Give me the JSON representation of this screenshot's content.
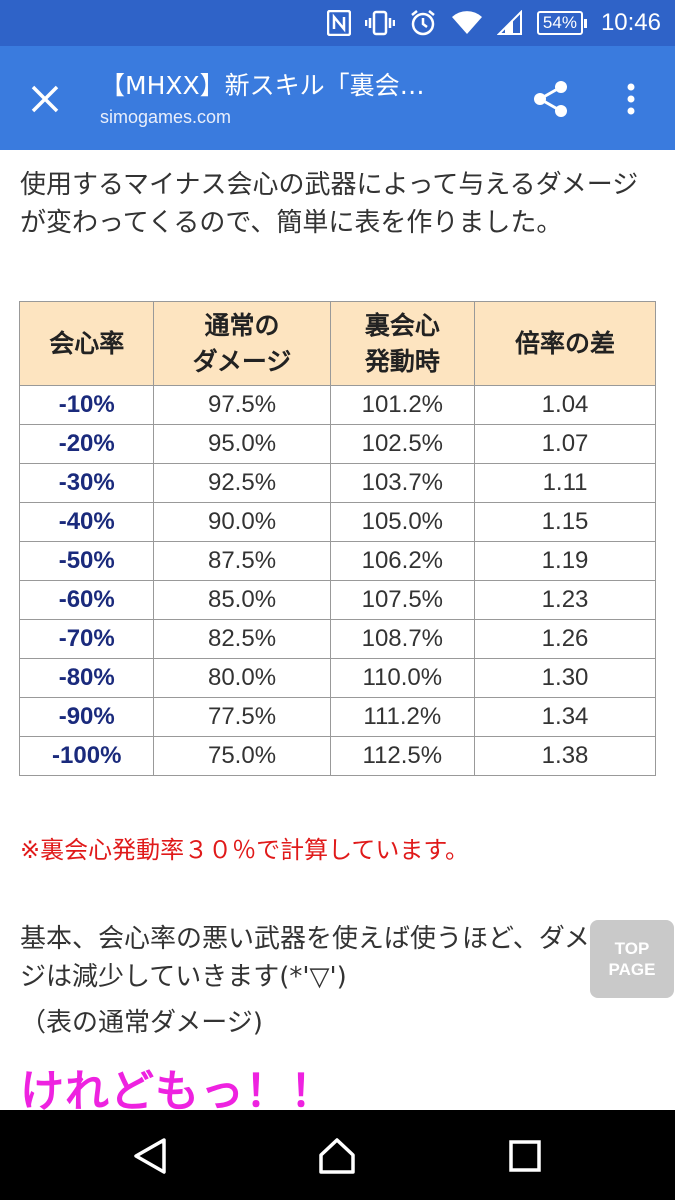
{
  "status_bar": {
    "time": "10:46",
    "battery": "54%",
    "icons": [
      "nfc-icon",
      "vibrate-icon",
      "alarm-icon",
      "wifi-icon",
      "signal-icon",
      "battery-icon"
    ]
  },
  "app_bar": {
    "title": "【MHXX】新スキル「裏会…",
    "domain": "simogames.com",
    "icons": [
      "close-icon",
      "share-icon",
      "more-vert-icon"
    ]
  },
  "content": {
    "intro": "使用するマイナス会心の武器によって与えるダメージが変わってくるので、簡単に表を作りました。",
    "table": {
      "headers": [
        "会心率",
        "通常の\nダメージ",
        "裏会心\n発動時",
        "倍率の差"
      ],
      "header_color": "#fde4c0",
      "rows": [
        [
          "-10%",
          "97.5%",
          "101.2%",
          "1.04"
        ],
        [
          "-20%",
          "95.0%",
          "102.5%",
          "1.07"
        ],
        [
          "-30%",
          "92.5%",
          "103.7%",
          "1.11"
        ],
        [
          "-40%",
          "90.0%",
          "105.0%",
          "1.15"
        ],
        [
          "-50%",
          "87.5%",
          "106.2%",
          "1.19"
        ],
        [
          "-60%",
          "85.0%",
          "107.5%",
          "1.23"
        ],
        [
          "-70%",
          "82.5%",
          "108.7%",
          "1.26"
        ],
        [
          "-80%",
          "80.0%",
          "110.0%",
          "1.30"
        ],
        [
          "-90%",
          "77.5%",
          "111.2%",
          "1.34"
        ],
        [
          "-100%",
          "75.0%",
          "112.5%",
          "1.38"
        ]
      ]
    },
    "note": "※裏会心発動率３０％で計算しています。",
    "para2": "基本、会心率の悪い武器を使えば使うほど、ダメージは減少していきます(*'▽')",
    "para3": "（表の通常ダメージ)",
    "emphasis": "けれどもっ！！",
    "top_page_button": "TOP\nPAGE"
  },
  "nav_bar": {
    "icons": [
      "back-icon",
      "home-icon",
      "recents-icon"
    ]
  },
  "colors": {
    "status_bar": "#2f63c8",
    "app_bar": "#3a7bde",
    "rate_text": "#1a2a7c",
    "note_text": "#e01a1a",
    "emphasis_text": "#ee22e0"
  }
}
